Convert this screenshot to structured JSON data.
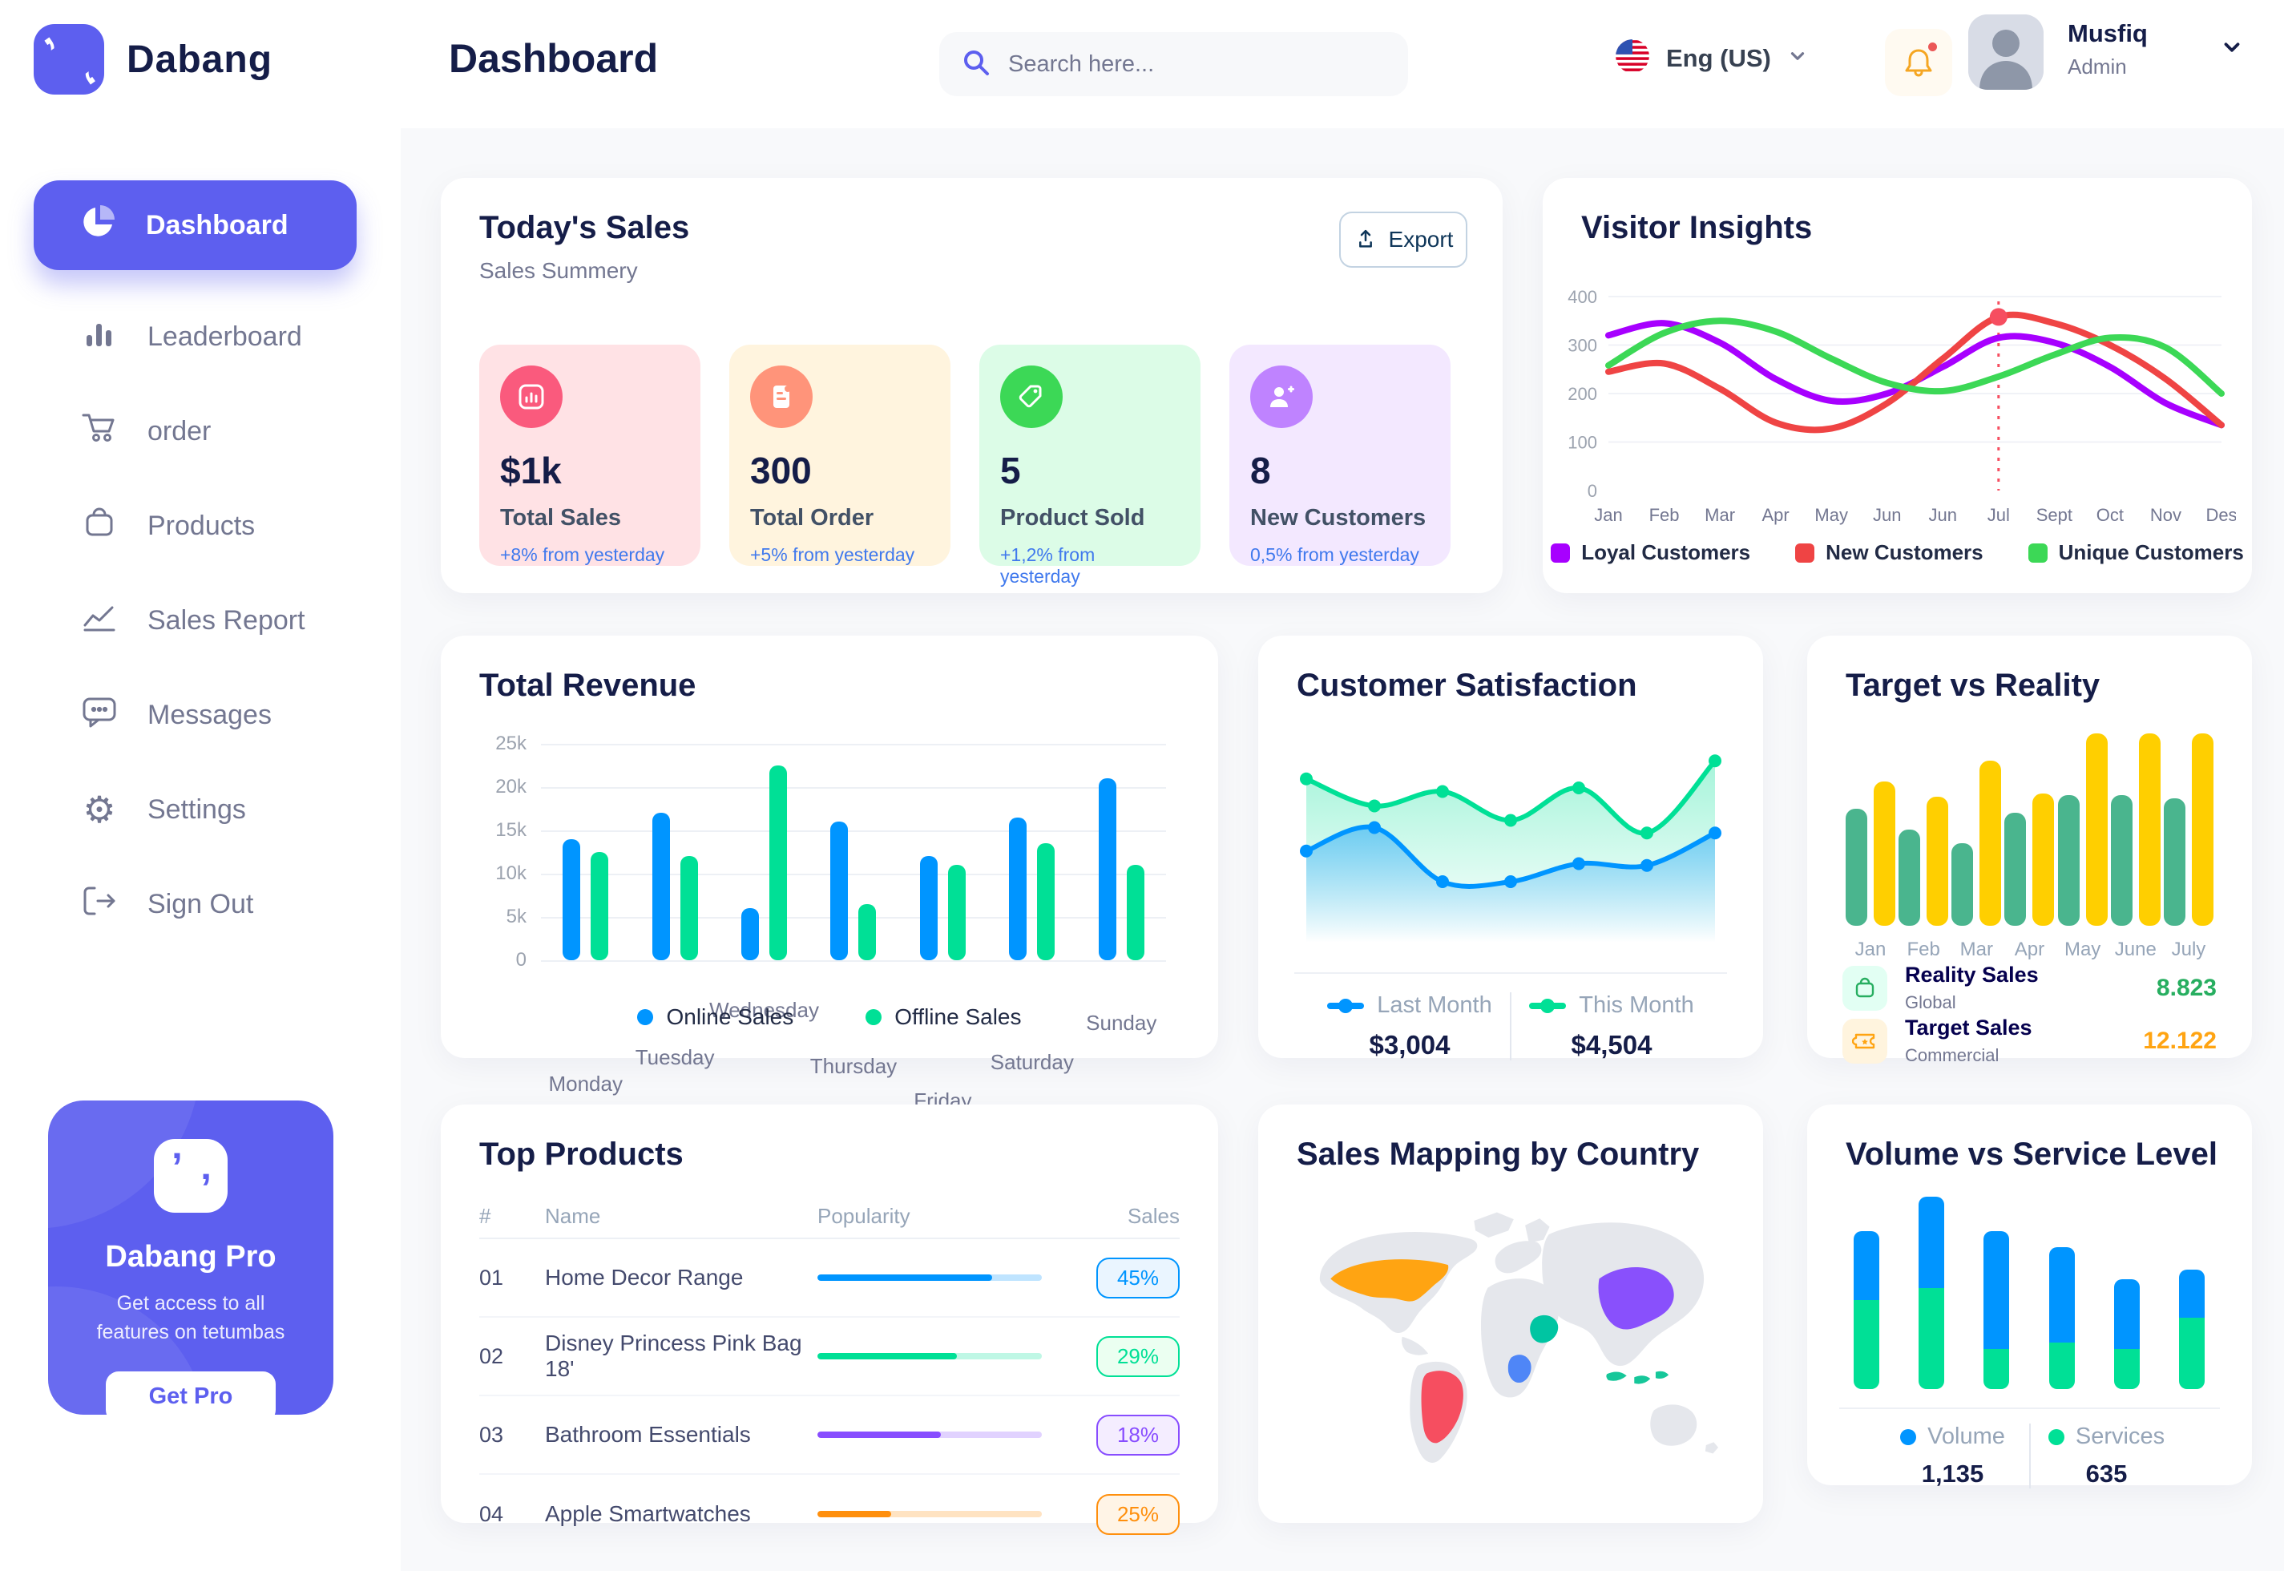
{
  "app": {
    "brand": "Dabang",
    "accent_color": "#5D5FEF"
  },
  "header": {
    "title": "Dashboard",
    "search_placeholder": "Search here...",
    "language": "Eng (US)",
    "user": {
      "name": "Musfiq",
      "role": "Admin"
    }
  },
  "sidebar": {
    "items": [
      {
        "label": "Dashboard",
        "active": true
      },
      {
        "label": "Leaderboard"
      },
      {
        "label": "order"
      },
      {
        "label": "Products"
      },
      {
        "label": "Sales Report"
      },
      {
        "label": "Messages"
      },
      {
        "label": "Settings"
      },
      {
        "label": "Sign Out"
      }
    ],
    "promo": {
      "title": "Dabang Pro",
      "subtitle": "Get access to all features on tetumbas",
      "button": "Get Pro"
    }
  },
  "today_sales": {
    "title": "Today's Sales",
    "subtitle": "Sales Summery",
    "export_label": "Export",
    "stats": [
      {
        "value": "$1k",
        "label": "Total Sales",
        "delta": "+8% from yesterday",
        "bg": "#FFE2E5",
        "icon_bg": "#FA5A7D",
        "icon": "bar-chart"
      },
      {
        "value": "300",
        "label": "Total Order",
        "delta": "+5% from yesterday",
        "bg": "#FFF4DE",
        "icon_bg": "#FF947A",
        "icon": "order-doc"
      },
      {
        "value": "5",
        "label": "Product Sold",
        "delta": "+1,2% from yesterday",
        "bg": "#DCFCE7",
        "icon_bg": "#3CD856",
        "icon": "tag"
      },
      {
        "value": "8",
        "label": "New Customers",
        "delta": "0,5% from yesterday",
        "bg": "#F3E8FF",
        "icon_bg": "#BF83FF",
        "icon": "user-plus"
      }
    ]
  },
  "chart_data": [
    {
      "id": "visitor_insights",
      "type": "line",
      "title": "Visitor Insights",
      "x": [
        "Jan",
        "Feb",
        "Mar",
        "Apr",
        "May",
        "Jun",
        "Jun",
        "Jul",
        "Sept",
        "Oct",
        "Nov",
        "Des"
      ],
      "ylim": [
        0,
        400
      ],
      "yticks": [
        0,
        100,
        200,
        300,
        400
      ],
      "grid": true,
      "legend_position": "bottom",
      "series": [
        {
          "name": "Loyal Customers",
          "color": "#A700FF",
          "values": [
            320,
            345,
            305,
            230,
            185,
            200,
            255,
            315,
            305,
            255,
            180,
            135
          ]
        },
        {
          "name": "New Customers",
          "color": "#EF4444",
          "values": [
            245,
            262,
            210,
            140,
            128,
            180,
            272,
            358,
            345,
            300,
            230,
            135
          ]
        },
        {
          "name": "Unique Customers",
          "color": "#3CD856",
          "values": [
            258,
            325,
            350,
            328,
            272,
            222,
            205,
            235,
            280,
            315,
            295,
            200
          ]
        }
      ],
      "marker": {
        "series": "New Customers",
        "x_index": 7,
        "value": 358,
        "color": "#F64E60",
        "style": "dashed-vertical-line-with-dot"
      }
    },
    {
      "id": "total_revenue",
      "type": "bar",
      "title": "Total Revenue",
      "categories": [
        "Monday",
        "Tuesday",
        "Wednesday",
        "Thursday",
        "Friday",
        "Saturday",
        "Sunday"
      ],
      "ylim": [
        0,
        25000
      ],
      "yticks": [
        "0",
        "5k",
        "10k",
        "15k",
        "20k",
        "25k"
      ],
      "grid": true,
      "legend_position": "bottom",
      "series": [
        {
          "name": "Online Sales",
          "color": "#0095FF",
          "values": [
            14000,
            17000,
            6000,
            16000,
            12000,
            16500,
            21000
          ]
        },
        {
          "name": "Offline Sales",
          "color": "#00E096",
          "values": [
            12500,
            12000,
            22500,
            6500,
            11000,
            13500,
            11000
          ]
        }
      ]
    },
    {
      "id": "customer_satisfaction",
      "type": "area",
      "title": "Customer Satisfaction",
      "x": [
        1,
        2,
        3,
        4,
        5,
        6,
        7
      ],
      "legend_position": "bottom",
      "series": [
        {
          "name": "Last Month",
          "color": "#0095FF",
          "total": "$3,004",
          "values": [
            45,
            58,
            28,
            28,
            38,
            37,
            55
          ]
        },
        {
          "name": "This Month",
          "color": "#00E096",
          "total": "$4,504",
          "values": [
            85,
            70,
            78,
            62,
            80,
            55,
            95
          ]
        }
      ]
    },
    {
      "id": "target_vs_reality",
      "type": "bar",
      "title": "Target vs Reality",
      "categories": [
        "Jan",
        "Feb",
        "Mar",
        "Apr",
        "May",
        "June",
        "July"
      ],
      "ymax": 14,
      "legend_position": "bottom",
      "series": [
        {
          "name": "Reality Sales",
          "subtitle": "Global",
          "color": "#4AB58E",
          "value_label": "8.823",
          "value_color": "#27AE60",
          "icon_bg": "#E2FFF3",
          "values": [
            8.5,
            7,
            6,
            8.2,
            9.5,
            9.5,
            9.3
          ]
        },
        {
          "name": "Target Sales",
          "subtitle": "Commercial",
          "color": "#FFCF00",
          "value_label": "12.122",
          "value_color": "#FFA412",
          "icon_bg": "#FFF4DE",
          "values": [
            10.5,
            9.4,
            12,
            9.6,
            14,
            14,
            14
          ]
        }
      ]
    },
    {
      "id": "top_products",
      "type": "table",
      "title": "Top Products",
      "columns": [
        "#",
        "Name",
        "Popularity",
        "Sales"
      ],
      "rows": [
        {
          "rank": "01",
          "name": "Home Decor Range",
          "popularity": 78,
          "sales": "45%",
          "color": "#0095FF",
          "badge_bg": "#EAF5FF"
        },
        {
          "rank": "02",
          "name": "Disney Princess Pink Bag 18'",
          "popularity": 62,
          "sales": "29%",
          "color": "#00E096",
          "badge_bg": "#EBFFF1"
        },
        {
          "rank": "03",
          "name": "Bathroom Essentials",
          "popularity": 55,
          "sales": "18%",
          "color": "#884DFF",
          "badge_bg": "#F4EDFF"
        },
        {
          "rank": "04",
          "name": "Apple Smartwatches",
          "popularity": 33,
          "sales": "25%",
          "color": "#FF8F0D",
          "badge_bg": "#FFF4E6"
        }
      ]
    },
    {
      "id": "volume_vs_service",
      "type": "bar",
      "title": "Volume vs Service Level",
      "stacked": true,
      "unit": "relative (max 300)",
      "legend_position": "bottom",
      "series": [
        {
          "name": "Volume",
          "color": "#0095FF",
          "total": "1,135",
          "values": [
            107,
            142,
            183,
            148,
            108,
            75
          ]
        },
        {
          "name": "Services",
          "color": "#00E096",
          "total": "635",
          "values": [
            139,
            158,
            63,
            73,
            63,
            111
          ]
        }
      ]
    },
    {
      "id": "sales_mapping",
      "type": "heatmap",
      "style": "choropleth world map",
      "title": "Sales Mapping by Country",
      "countries": [
        {
          "name": "United States",
          "color": "#FFA412"
        },
        {
          "name": "Brazil",
          "color": "#F64E60"
        },
        {
          "name": "DR Congo",
          "color": "#4F86F7"
        },
        {
          "name": "Saudi Arabia",
          "color": "#00C5A2"
        },
        {
          "name": "China",
          "color": "#8950FC"
        },
        {
          "name": "Indonesia",
          "color": "#16C79A"
        }
      ]
    }
  ]
}
